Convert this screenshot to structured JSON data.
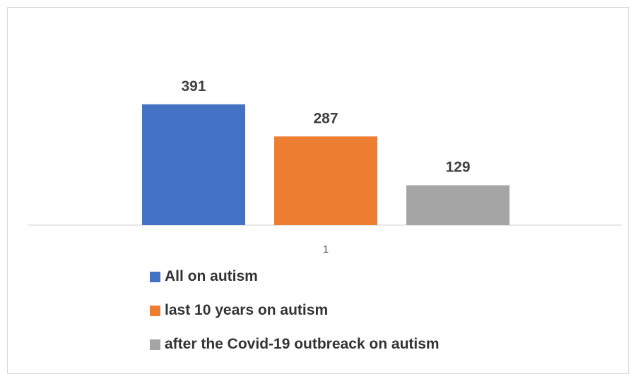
{
  "chart_data": {
    "type": "bar",
    "categories": [
      "1"
    ],
    "series": [
      {
        "name": "All on autism",
        "values": [
          391
        ],
        "color": "#4472C4"
      },
      {
        "name": "last 10 years on autism",
        "values": [
          287
        ],
        "color": "#ED7D31"
      },
      {
        "name": "after the Covid-19 outbreack on autism",
        "values": [
          129
        ],
        "color": "#A5A5A5"
      }
    ],
    "title": "",
    "xlabel": "",
    "ylabel": "",
    "ylim": [
      0,
      500
    ],
    "grid": false,
    "data_labels": true,
    "legend_position": "bottom"
  }
}
